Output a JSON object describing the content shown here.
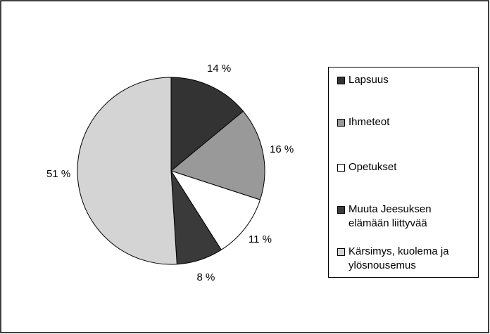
{
  "chart_data": {
    "type": "pie",
    "categories": [
      "Lapsuus",
      "Ihmeteot",
      "Opetukset",
      "Muuta Jeesuksen elämään liittyvää",
      "Kärsimys, kuolema ja ylösnousemus"
    ],
    "values": [
      14,
      16,
      11,
      8,
      51
    ],
    "value_labels": [
      "14 %",
      "16 %",
      "11 %",
      "8 %",
      "51 %"
    ],
    "colors": [
      "#333333",
      "#999999",
      "#ffffff",
      "#3a3a3a",
      "#d4d4d4"
    ],
    "legend": "right"
  }
}
